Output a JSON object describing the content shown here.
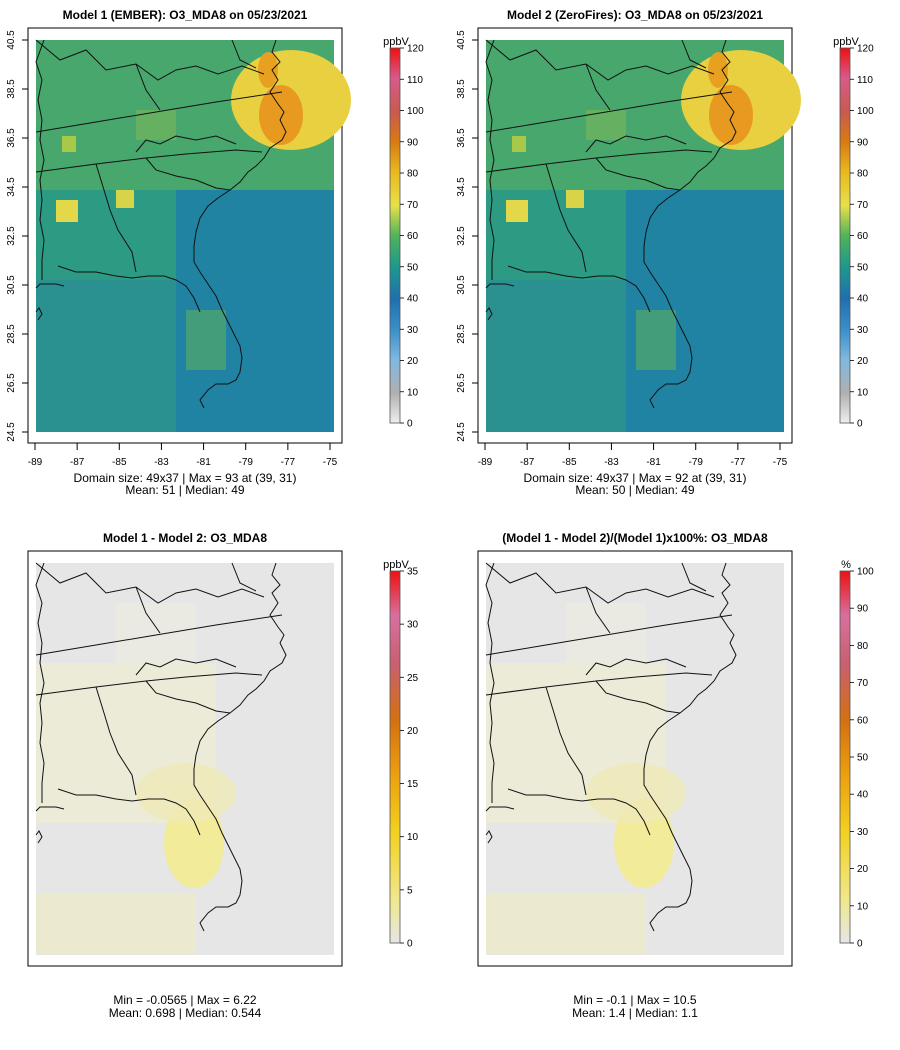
{
  "panels": [
    {
      "id": "p1",
      "title": "Model 1 (EMBER): O3_MDA8 on 05/23/2021",
      "has_axes": true,
      "stats_line1": "Domain size: 49x37 | Max = 93 at (39, 31)",
      "stats_line2": "Mean: 51 |  Median: 49",
      "colorbar": {
        "unit": "ppbV",
        "ticks": [
          "0",
          "10",
          "20",
          "30",
          "40",
          "50",
          "60",
          "70",
          "80",
          "90",
          "100",
          "110",
          "120"
        ],
        "range": [
          0,
          120
        ]
      }
    },
    {
      "id": "p2",
      "title": "Model 2 (ZeroFires): O3_MDA8 on 05/23/2021",
      "has_axes": true,
      "stats_line1": "Domain size: 49x37 | Max = 92 at (39, 31)",
      "stats_line2": "Mean: 50 |  Median: 49",
      "colorbar": {
        "unit": "ppbV",
        "ticks": [
          "0",
          "10",
          "20",
          "30",
          "40",
          "50",
          "60",
          "70",
          "80",
          "90",
          "100",
          "110",
          "120"
        ],
        "range": [
          0,
          120
        ]
      }
    },
    {
      "id": "p3",
      "title": "Model 1 - Model 2: O3_MDA8",
      "has_axes": false,
      "stats_line1": "Min = -0.0565 | Max = 6.22",
      "stats_line2": "Mean: 0.698 |  Median: 0.544",
      "colorbar": {
        "unit": "ppbV",
        "ticks": [
          "0",
          "5",
          "10",
          "15",
          "20",
          "25",
          "30",
          "35"
        ],
        "range": [
          0,
          35
        ]
      }
    },
    {
      "id": "p4",
      "title": "(Model 1 - Model 2)/(Model 1)x100%: O3_MDA8",
      "has_axes": false,
      "stats_line1": "Min = -0.1 | Max = 10.5",
      "stats_line2": "Mean: 1.4 |  Median: 1.1",
      "colorbar": {
        "unit": "%",
        "ticks": [
          "0",
          "10",
          "20",
          "30",
          "40",
          "50",
          "60",
          "70",
          "80",
          "90",
          "100"
        ],
        "range": [
          0,
          100
        ]
      }
    }
  ],
  "chart_data": [
    {
      "type": "heatmap",
      "title": "Model 1 (EMBER): O3_MDA8 on 05/23/2021",
      "xlabel": "",
      "ylabel": "",
      "x_ticks": [
        "-89",
        "-87",
        "-85",
        "-83",
        "-81",
        "-79",
        "-77",
        "-75"
      ],
      "y_ticks": [
        "24.5",
        "26.5",
        "28.5",
        "30.5",
        "32.5",
        "34.5",
        "36.5",
        "38.5",
        "40.5"
      ],
      "xlim": [
        -89,
        -75
      ],
      "ylim": [
        24.5,
        40.5
      ],
      "grid_size": [
        49,
        37
      ],
      "max": 93,
      "max_at": [
        39,
        31
      ],
      "mean": 51,
      "median": 49,
      "colorbar_unit": "ppbV",
      "colorbar_range": [
        0,
        120
      ]
    },
    {
      "type": "heatmap",
      "title": "Model 2 (ZeroFires): O3_MDA8 on 05/23/2021",
      "xlabel": "",
      "ylabel": "",
      "x_ticks": [
        "-89",
        "-87",
        "-85",
        "-83",
        "-81",
        "-79",
        "-77",
        "-75"
      ],
      "y_ticks": [
        "24.5",
        "26.5",
        "28.5",
        "30.5",
        "32.5",
        "34.5",
        "36.5",
        "38.5",
        "40.5"
      ],
      "xlim": [
        -89,
        -75
      ],
      "ylim": [
        24.5,
        40.5
      ],
      "grid_size": [
        49,
        37
      ],
      "max": 92,
      "max_at": [
        39,
        31
      ],
      "mean": 50,
      "median": 49,
      "colorbar_unit": "ppbV",
      "colorbar_range": [
        0,
        120
      ]
    },
    {
      "type": "heatmap",
      "title": "Model 1 - Model 2: O3_MDA8",
      "min": -0.0565,
      "max": 6.22,
      "mean": 0.698,
      "median": 0.544,
      "colorbar_unit": "ppbV",
      "colorbar_range": [
        0,
        35
      ]
    },
    {
      "type": "heatmap",
      "title": "(Model 1 - Model 2)/(Model 1)x100%: O3_MDA8",
      "min": -0.1,
      "max": 10.5,
      "mean": 1.4,
      "median": 1.1,
      "colorbar_unit": "%",
      "colorbar_range": [
        0,
        100
      ]
    }
  ]
}
